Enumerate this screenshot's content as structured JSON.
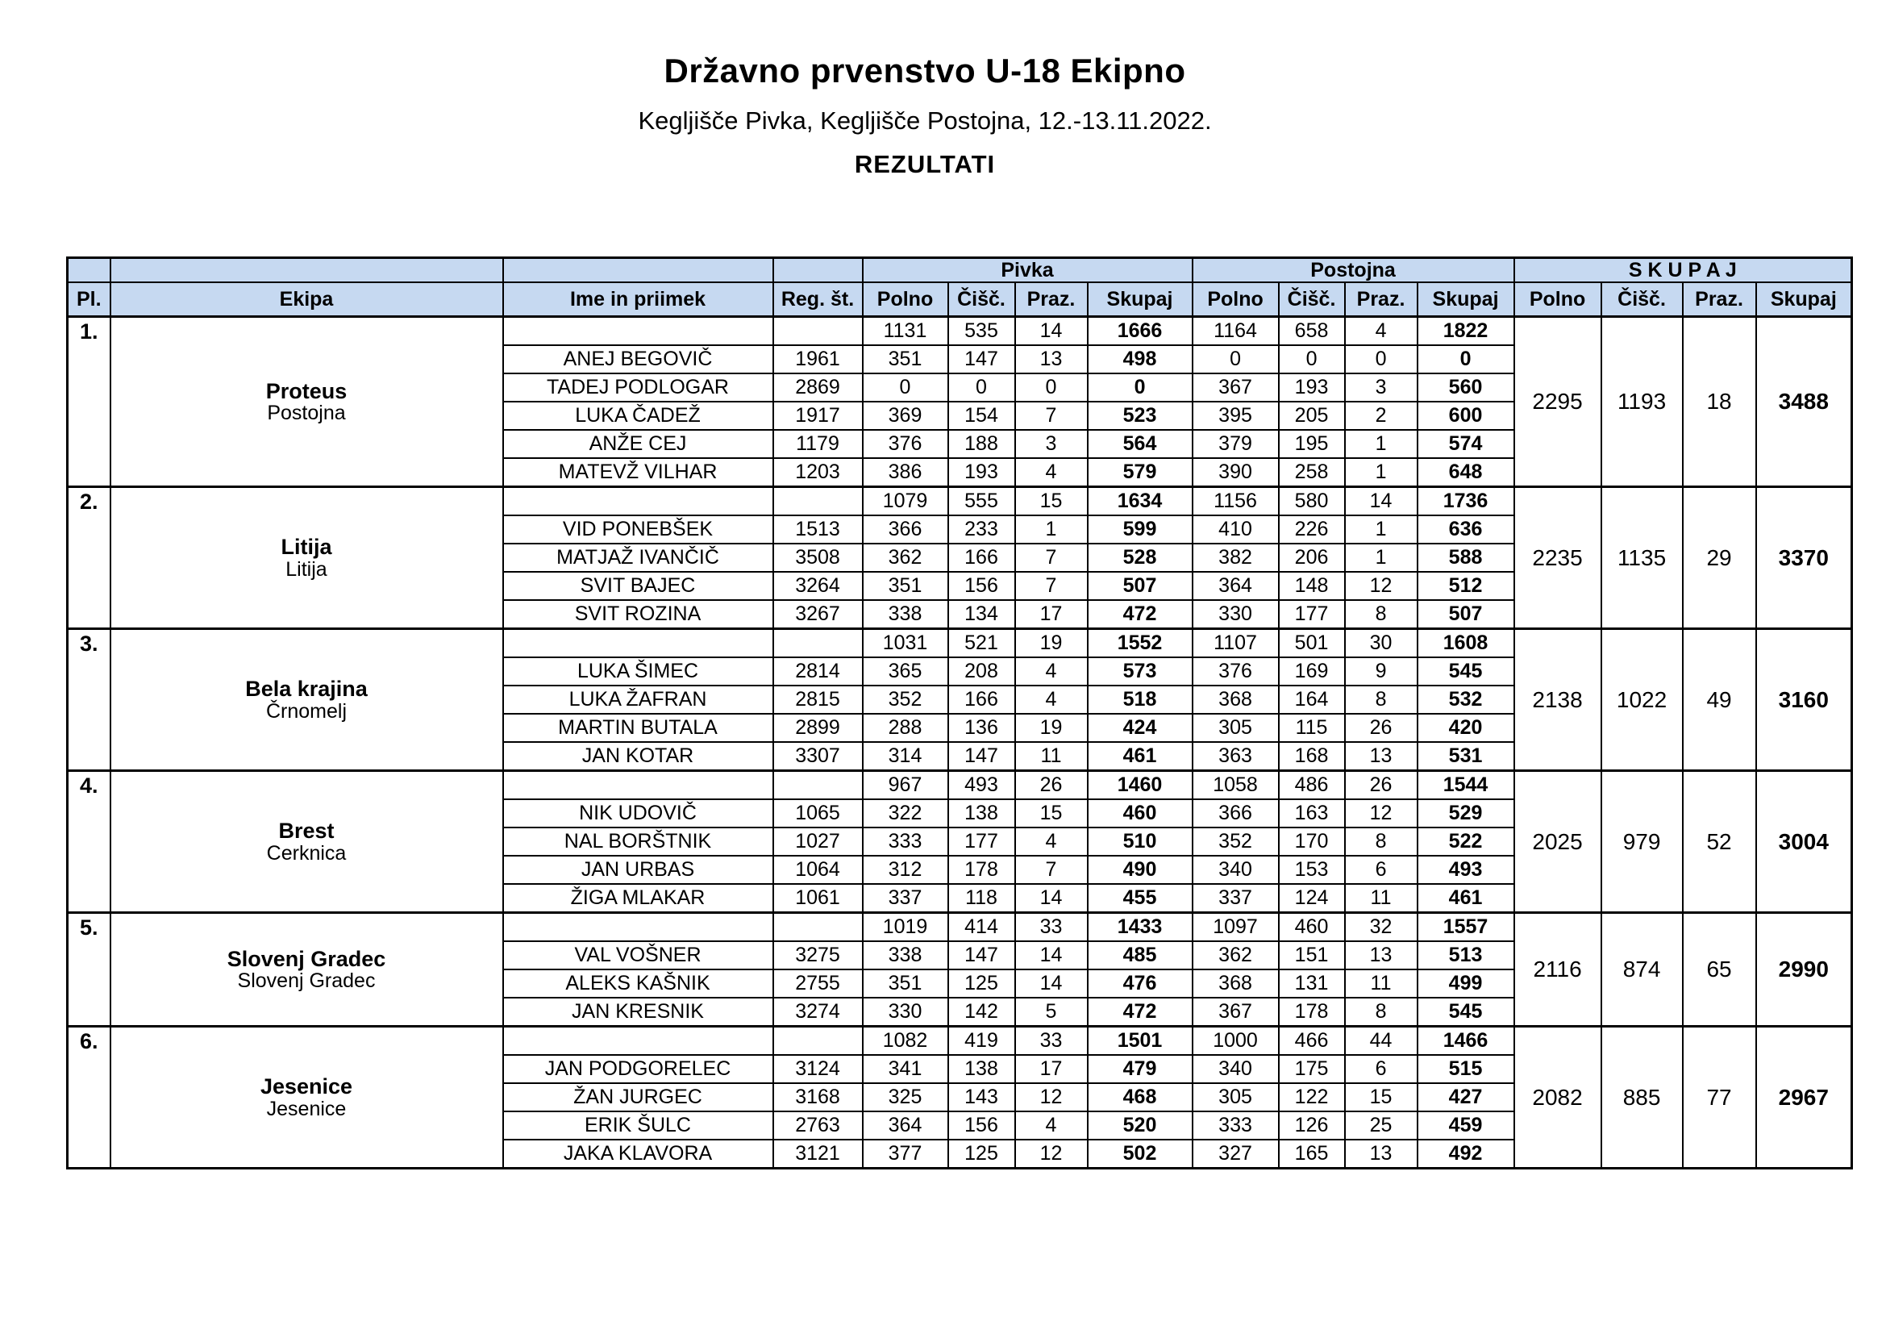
{
  "page": {
    "title": "Državno prvenstvo U-18 Ekipno",
    "subtitle": "Kegljišče Pivka, Kegljišče Postojna, 12.-13.11.2022.",
    "results_label": "REZULTATI"
  },
  "table": {
    "colors": {
      "header_bg": "#c6d9f1",
      "border": "#000000",
      "text": "#000000"
    },
    "group_headers": [
      "Pivka",
      "Postojna",
      "S K U P A J"
    ],
    "columns": [
      "Pl.",
      "Ekipa",
      "Ime in priimek",
      "Reg. št.",
      "Polno",
      "Čišč.",
      "Praz.",
      "Skupaj",
      "Polno",
      "Čišč.",
      "Praz.",
      "Skupaj",
      "Polno",
      "Čišč.",
      "Praz.",
      "Skupaj"
    ],
    "teams": [
      {
        "place": "1.",
        "name": "Proteus",
        "city": "Postojna",
        "pivka": [
          "1131",
          "535",
          "14",
          "1666"
        ],
        "postojna": [
          "1164",
          "658",
          "4",
          "1822"
        ],
        "skupaj": [
          "2295",
          "1193",
          "18",
          "3488"
        ],
        "players": [
          {
            "name": "ANEJ BEGOVIČ",
            "reg": "1961",
            "pivka": [
              "351",
              "147",
              "13",
              "498"
            ],
            "postojna": [
              "0",
              "0",
              "0",
              "0"
            ]
          },
          {
            "name": "TADEJ PODLOGAR",
            "reg": "2869",
            "pivka": [
              "0",
              "0",
              "0",
              "0"
            ],
            "postojna": [
              "367",
              "193",
              "3",
              "560"
            ]
          },
          {
            "name": "LUKA ČADEŽ",
            "reg": "1917",
            "pivka": [
              "369",
              "154",
              "7",
              "523"
            ],
            "postojna": [
              "395",
              "205",
              "2",
              "600"
            ]
          },
          {
            "name": "ANŽE CEJ",
            "reg": "1179",
            "pivka": [
              "376",
              "188",
              "3",
              "564"
            ],
            "postojna": [
              "379",
              "195",
              "1",
              "574"
            ]
          },
          {
            "name": "MATEVŽ VILHAR",
            "reg": "1203",
            "pivka": [
              "386",
              "193",
              "4",
              "579"
            ],
            "postojna": [
              "390",
              "258",
              "1",
              "648"
            ]
          }
        ]
      },
      {
        "place": "2.",
        "name": "Litija",
        "city": "Litija",
        "pivka": [
          "1079",
          "555",
          "15",
          "1634"
        ],
        "postojna": [
          "1156",
          "580",
          "14",
          "1736"
        ],
        "skupaj": [
          "2235",
          "1135",
          "29",
          "3370"
        ],
        "players": [
          {
            "name": "VID PONEBŠEK",
            "reg": "1513",
            "pivka": [
              "366",
              "233",
              "1",
              "599"
            ],
            "postojna": [
              "410",
              "226",
              "1",
              "636"
            ]
          },
          {
            "name": "MATJAŽ IVANČIČ",
            "reg": "3508",
            "pivka": [
              "362",
              "166",
              "7",
              "528"
            ],
            "postojna": [
              "382",
              "206",
              "1",
              "588"
            ]
          },
          {
            "name": "SVIT BAJEC",
            "reg": "3264",
            "pivka": [
              "351",
              "156",
              "7",
              "507"
            ],
            "postojna": [
              "364",
              "148",
              "12",
              "512"
            ]
          },
          {
            "name": "SVIT ROZINA",
            "reg": "3267",
            "pivka": [
              "338",
              "134",
              "17",
              "472"
            ],
            "postojna": [
              "330",
              "177",
              "8",
              "507"
            ]
          }
        ]
      },
      {
        "place": "3.",
        "name": "Bela krajina",
        "city": "Črnomelj",
        "pivka": [
          "1031",
          "521",
          "19",
          "1552"
        ],
        "postojna": [
          "1107",
          "501",
          "30",
          "1608"
        ],
        "skupaj": [
          "2138",
          "1022",
          "49",
          "3160"
        ],
        "players": [
          {
            "name": "LUKA ŠIMEC",
            "reg": "2814",
            "pivka": [
              "365",
              "208",
              "4",
              "573"
            ],
            "postojna": [
              "376",
              "169",
              "9",
              "545"
            ]
          },
          {
            "name": "LUKA ŽAFRAN",
            "reg": "2815",
            "pivka": [
              "352",
              "166",
              "4",
              "518"
            ],
            "postojna": [
              "368",
              "164",
              "8",
              "532"
            ]
          },
          {
            "name": "MARTIN BUTALA",
            "reg": "2899",
            "pivka": [
              "288",
              "136",
              "19",
              "424"
            ],
            "postojna": [
              "305",
              "115",
              "26",
              "420"
            ]
          },
          {
            "name": "JAN KOTAR",
            "reg": "3307",
            "pivka": [
              "314",
              "147",
              "11",
              "461"
            ],
            "postojna": [
              "363",
              "168",
              "13",
              "531"
            ]
          }
        ]
      },
      {
        "place": "4.",
        "name": "Brest",
        "city": "Cerknica",
        "pivka": [
          "967",
          "493",
          "26",
          "1460"
        ],
        "postojna": [
          "1058",
          "486",
          "26",
          "1544"
        ],
        "skupaj": [
          "2025",
          "979",
          "52",
          "3004"
        ],
        "players": [
          {
            "name": "NIK UDOVIČ",
            "reg": "1065",
            "pivka": [
              "322",
              "138",
              "15",
              "460"
            ],
            "postojna": [
              "366",
              "163",
              "12",
              "529"
            ]
          },
          {
            "name": "NAL BORŠTNIK",
            "reg": "1027",
            "pivka": [
              "333",
              "177",
              "4",
              "510"
            ],
            "postojna": [
              "352",
              "170",
              "8",
              "522"
            ]
          },
          {
            "name": "JAN URBAS",
            "reg": "1064",
            "pivka": [
              "312",
              "178",
              "7",
              "490"
            ],
            "postojna": [
              "340",
              "153",
              "6",
              "493"
            ]
          },
          {
            "name": "ŽIGA MLAKAR",
            "reg": "1061",
            "pivka": [
              "337",
              "118",
              "14",
              "455"
            ],
            "postojna": [
              "337",
              "124",
              "11",
              "461"
            ]
          }
        ]
      },
      {
        "place": "5.",
        "name": "Slovenj Gradec",
        "city": "Slovenj Gradec",
        "pivka": [
          "1019",
          "414",
          "33",
          "1433"
        ],
        "postojna": [
          "1097",
          "460",
          "32",
          "1557"
        ],
        "skupaj": [
          "2116",
          "874",
          "65",
          "2990"
        ],
        "players": [
          {
            "name": "VAL VOŠNER",
            "reg": "3275",
            "pivka": [
              "338",
              "147",
              "14",
              "485"
            ],
            "postojna": [
              "362",
              "151",
              "13",
              "513"
            ]
          },
          {
            "name": "ALEKS KAŠNIK",
            "reg": "2755",
            "pivka": [
              "351",
              "125",
              "14",
              "476"
            ],
            "postojna": [
              "368",
              "131",
              "11",
              "499"
            ]
          },
          {
            "name": "JAN KRESNIK",
            "reg": "3274",
            "pivka": [
              "330",
              "142",
              "5",
              "472"
            ],
            "postojna": [
              "367",
              "178",
              "8",
              "545"
            ]
          }
        ]
      },
      {
        "place": "6.",
        "name": "Jesenice",
        "city": "Jesenice",
        "pivka": [
          "1082",
          "419",
          "33",
          "1501"
        ],
        "postojna": [
          "1000",
          "466",
          "44",
          "1466"
        ],
        "skupaj": [
          "2082",
          "885",
          "77",
          "2967"
        ],
        "players": [
          {
            "name": "JAN PODGORELEC",
            "reg": "3124",
            "pivka": [
              "341",
              "138",
              "17",
              "479"
            ],
            "postojna": [
              "340",
              "175",
              "6",
              "515"
            ]
          },
          {
            "name": "ŽAN JURGEC",
            "reg": "3168",
            "pivka": [
              "325",
              "143",
              "12",
              "468"
            ],
            "postojna": [
              "305",
              "122",
              "15",
              "427"
            ]
          },
          {
            "name": "ERIK ŠULC",
            "reg": "2763",
            "pivka": [
              "364",
              "156",
              "4",
              "520"
            ],
            "postojna": [
              "333",
              "126",
              "25",
              "459"
            ]
          },
          {
            "name": "JAKA KLAVORA",
            "reg": "3121",
            "pivka": [
              "377",
              "125",
              "12",
              "502"
            ],
            "postojna": [
              "327",
              "165",
              "13",
              "492"
            ]
          }
        ]
      }
    ]
  }
}
